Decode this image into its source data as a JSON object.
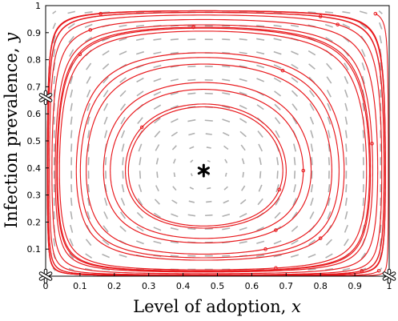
{
  "chart_data": {
    "type": "phase-portrait",
    "xlabel": "Level of adoption, ",
    "xlabel_var": "x",
    "ylabel": "Infection prevalence, ",
    "ylabel_var": "y",
    "xlim": [
      0,
      1
    ],
    "ylim": [
      0,
      1
    ],
    "xticks": [
      0,
      0.1,
      0.2,
      0.3,
      0.4,
      0.5,
      0.6,
      0.7,
      0.8,
      0.9,
      1
    ],
    "yticks": [
      0.1,
      0.2,
      0.3,
      0.4,
      0.5,
      0.6,
      0.7,
      0.8,
      0.9,
      1
    ],
    "xtick_labels": [
      "0",
      "0.1",
      "0.2",
      "0.3",
      "0.4",
      "0.5",
      "0.6",
      "0.7",
      "0.8",
      "0.9",
      "1"
    ],
    "ytick_labels": [
      "0.1",
      "0.2",
      "0.3",
      "0.4",
      "0.5",
      "0.6",
      "0.7",
      "0.8",
      "0.9",
      "1"
    ],
    "stable_equilibrium": {
      "x": 0.46,
      "y": 0.39
    },
    "unstable_equilibria": [
      {
        "x": 0,
        "y": 0
      },
      {
        "x": 1,
        "y": 0
      },
      {
        "x": 0,
        "y": 0.66
      }
    ],
    "trajectory_starts": [
      {
        "x": 0.16,
        "y": 0.97
      },
      {
        "x": 0.13,
        "y": 0.91
      },
      {
        "x": 0.1,
        "y": 0.82
      },
      {
        "x": 0.43,
        "y": 0.92
      },
      {
        "x": 0.8,
        "y": 0.96
      },
      {
        "x": 0.85,
        "y": 0.93
      },
      {
        "x": 0.96,
        "y": 0.97
      },
      {
        "x": 0.69,
        "y": 0.76
      },
      {
        "x": 0.95,
        "y": 0.49
      },
      {
        "x": 0.75,
        "y": 0.39
      },
      {
        "x": 0.28,
        "y": 0.55
      },
      {
        "x": 0.68,
        "y": 0.32
      },
      {
        "x": 0.67,
        "y": 0.17
      },
      {
        "x": 0.8,
        "y": 0.14
      },
      {
        "x": 0.64,
        "y": 0.1
      },
      {
        "x": 0.67,
        "y": 0.03
      },
      {
        "x": 0.97,
        "y": 0.02
      },
      {
        "x": 0.92,
        "y": 0.02
      }
    ],
    "colors": {
      "trajectory": "#e8191d",
      "vector_field": "#b0b0b0",
      "equilibrium": "#000000",
      "axes": "#000000"
    }
  }
}
